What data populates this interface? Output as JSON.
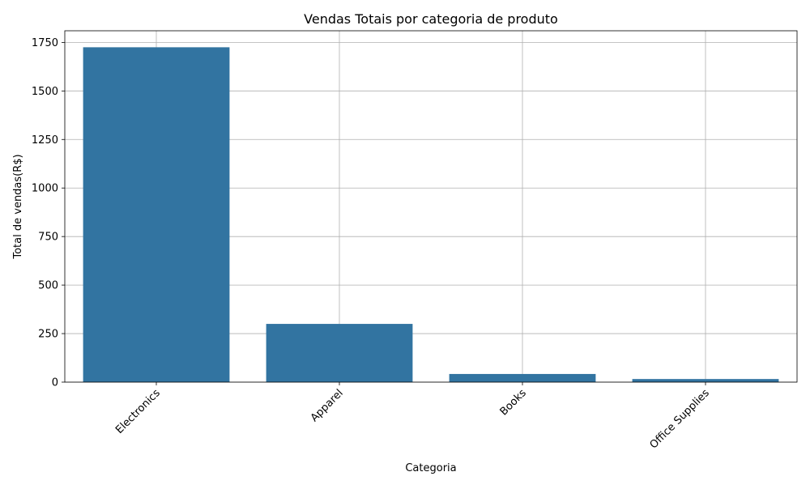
{
  "chart_data": {
    "type": "bar",
    "title": "Vendas Totais por categoria de produto",
    "xlabel": "Categoria",
    "ylabel": "Total de vendas(R$)",
    "categories": [
      "Electronics",
      "Apparel",
      "Books",
      "Office Supplies"
    ],
    "values": [
      1725,
      300,
      42,
      16
    ],
    "ylim": [
      0,
      1810
    ],
    "yticks": [
      0,
      250,
      500,
      750,
      1000,
      1250,
      1500,
      1750
    ],
    "grid": true,
    "bar_color": "#3274a1",
    "xtick_rotation_deg": 45
  }
}
